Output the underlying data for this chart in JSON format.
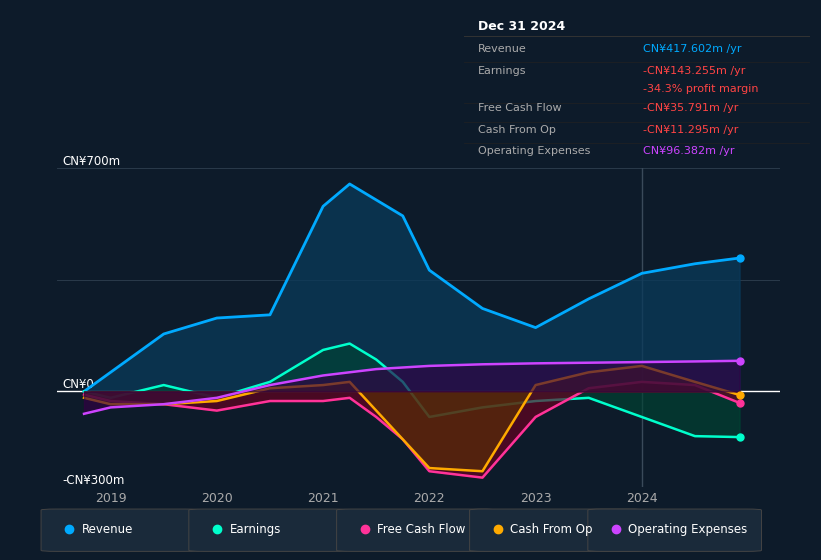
{
  "bg_color": "#0d1b2a",
  "plot_bg": "#0d1b2a",
  "ylim": [
    -300,
    700
  ],
  "xlim_start": 2018.5,
  "xlim_end": 2025.3,
  "xticks": [
    2019,
    2020,
    2021,
    2022,
    2023,
    2024
  ],
  "grid_color": "#2a3a4a",
  "zero_line_color": "#ffffff",
  "divider_x": 2024.0,
  "divider_color": "#3a4a5a",
  "series": {
    "Revenue": {
      "color": "#00aaff",
      "fill_color": "#0a3a5a",
      "x": [
        2018.75,
        2019.0,
        2019.5,
        2020.0,
        2020.5,
        2021.0,
        2021.25,
        2021.5,
        2021.75,
        2022.0,
        2022.5,
        2023.0,
        2023.5,
        2024.0,
        2024.5,
        2024.92
      ],
      "y": [
        0,
        60,
        180,
        230,
        240,
        580,
        650,
        600,
        550,
        380,
        260,
        200,
        290,
        370,
        400,
        418
      ]
    },
    "Earnings": {
      "color": "#00ffcc",
      "fill_color": "#004433",
      "x": [
        2018.75,
        2019.0,
        2019.5,
        2020.0,
        2020.5,
        2021.0,
        2021.25,
        2021.5,
        2021.75,
        2022.0,
        2022.5,
        2023.0,
        2023.5,
        2024.0,
        2024.5,
        2024.92
      ],
      "y": [
        0,
        -20,
        20,
        -20,
        30,
        130,
        150,
        100,
        30,
        -80,
        -50,
        -30,
        -20,
        -80,
        -140,
        -143
      ]
    },
    "FreeCashFlow": {
      "color": "#ff3399",
      "fill_color": "#6a0020",
      "x": [
        2018.75,
        2019.0,
        2019.5,
        2020.0,
        2020.5,
        2021.0,
        2021.25,
        2021.5,
        2021.75,
        2022.0,
        2022.5,
        2023.0,
        2023.5,
        2024.0,
        2024.5,
        2024.92
      ],
      "y": [
        -10,
        -30,
        -40,
        -60,
        -30,
        -30,
        -20,
        -80,
        -150,
        -250,
        -270,
        -80,
        10,
        30,
        20,
        -36
      ]
    },
    "CashFromOp": {
      "color": "#ffaa00",
      "fill_color": "#5a3300",
      "x": [
        2018.75,
        2019.0,
        2019.5,
        2020.0,
        2020.5,
        2021.0,
        2021.25,
        2021.5,
        2021.75,
        2022.0,
        2022.5,
        2023.0,
        2023.5,
        2024.0,
        2024.5,
        2024.92
      ],
      "y": [
        -20,
        -40,
        -40,
        -30,
        10,
        20,
        30,
        -60,
        -150,
        -240,
        -250,
        20,
        60,
        80,
        30,
        -11
      ]
    },
    "OperatingExpenses": {
      "color": "#cc44ff",
      "fill_color": "#330044",
      "x": [
        2018.75,
        2019.0,
        2019.5,
        2020.0,
        2020.5,
        2021.0,
        2021.25,
        2021.5,
        2021.75,
        2022.0,
        2022.5,
        2023.0,
        2023.5,
        2024.0,
        2024.5,
        2024.92
      ],
      "y": [
        -70,
        -50,
        -40,
        -20,
        20,
        50,
        60,
        70,
        75,
        80,
        85,
        88,
        90,
        92,
        94,
        96
      ]
    }
  },
  "tooltip": {
    "title": "Dec 31 2024",
    "rows": [
      {
        "label": "Revenue",
        "value": "CN¥417.602m /yr",
        "value_color": "#00aaff"
      },
      {
        "label": "Earnings",
        "value": "-CN¥143.255m /yr",
        "value_color": "#ff4444"
      },
      {
        "label": "",
        "value": "-34.3% profit margin",
        "value_color": "#ff4444"
      },
      {
        "label": "Free Cash Flow",
        "value": "-CN¥35.791m /yr",
        "value_color": "#ff4444"
      },
      {
        "label": "Cash From Op",
        "value": "-CN¥11.295m /yr",
        "value_color": "#ff4444"
      },
      {
        "label": "Operating Expenses",
        "value": "CN¥96.382m /yr",
        "value_color": "#cc44ff"
      }
    ]
  },
  "legend": [
    {
      "label": "Revenue",
      "color": "#00aaff"
    },
    {
      "label": "Earnings",
      "color": "#00ffcc"
    },
    {
      "label": "Free Cash Flow",
      "color": "#ff3399"
    },
    {
      "label": "Cash From Op",
      "color": "#ffaa00"
    },
    {
      "label": "Operating Expenses",
      "color": "#cc44ff"
    }
  ]
}
